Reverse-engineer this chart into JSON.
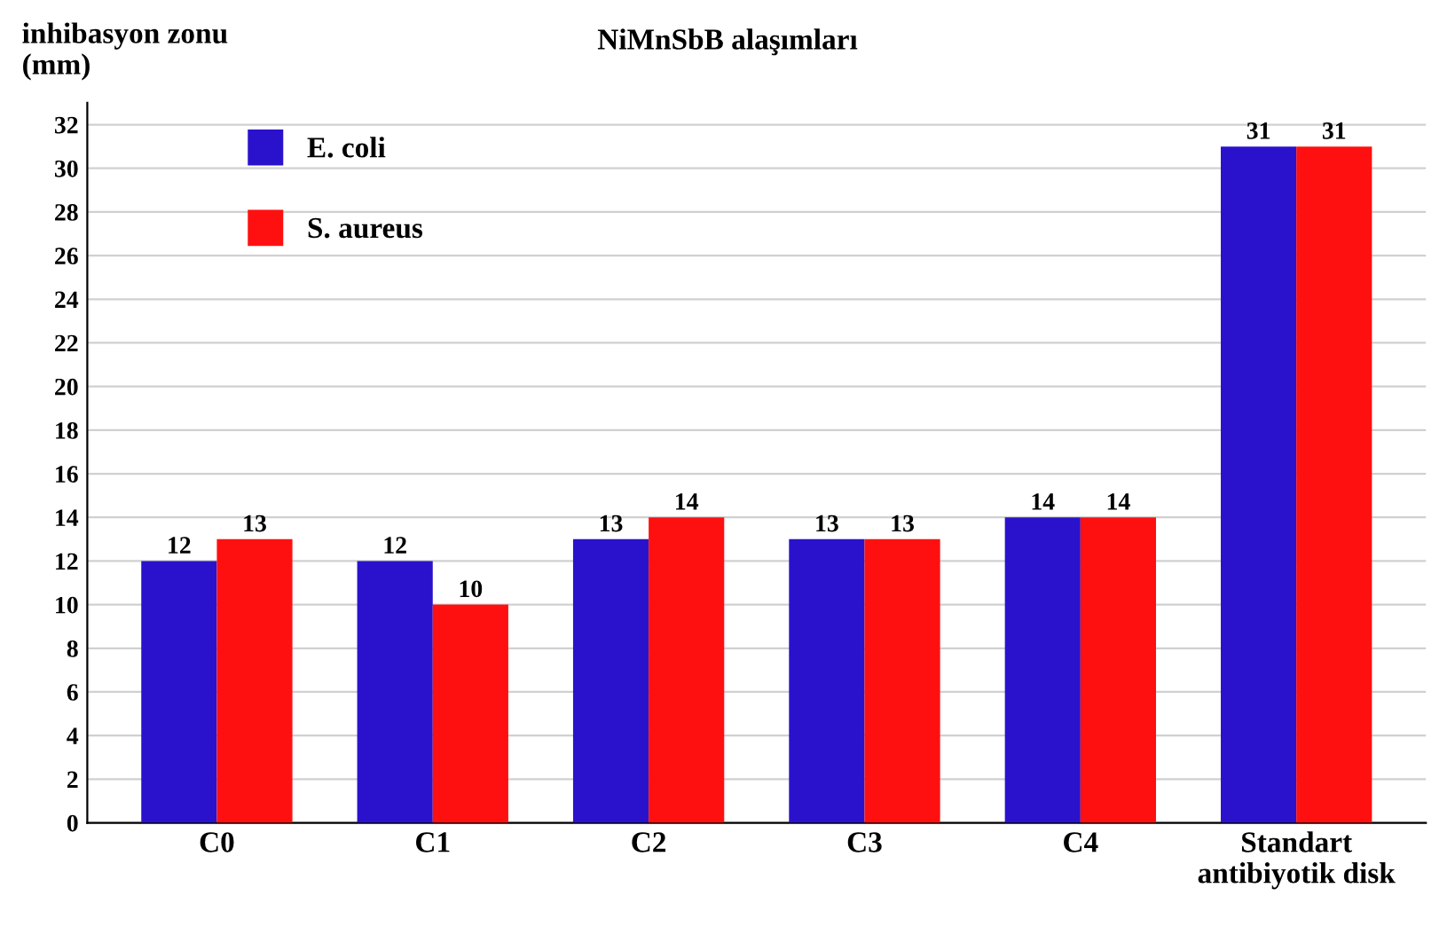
{
  "chart_data": {
    "type": "bar",
    "title": "NiMnSbB alaşımları",
    "ylabel": "inhibasyon zonu\n(mm)",
    "categories": [
      "C0",
      "C1",
      "C2",
      "C3",
      "C4",
      "Standart\nantibiyotik disk"
    ],
    "series": [
      {
        "name": "E. coli",
        "color": "#2a12cc",
        "values": [
          12,
          12,
          13,
          13,
          14,
          31
        ]
      },
      {
        "name": "S. aureus",
        "color": "#ff1010",
        "values": [
          13,
          10,
          14,
          13,
          14,
          31
        ]
      }
    ],
    "ylim": [
      0,
      33
    ],
    "yticks": [
      0,
      2,
      4,
      6,
      8,
      10,
      12,
      14,
      16,
      18,
      20,
      22,
      24,
      26,
      28,
      30,
      32
    ],
    "grid": "y",
    "legend": "top left",
    "data_labels": true
  }
}
